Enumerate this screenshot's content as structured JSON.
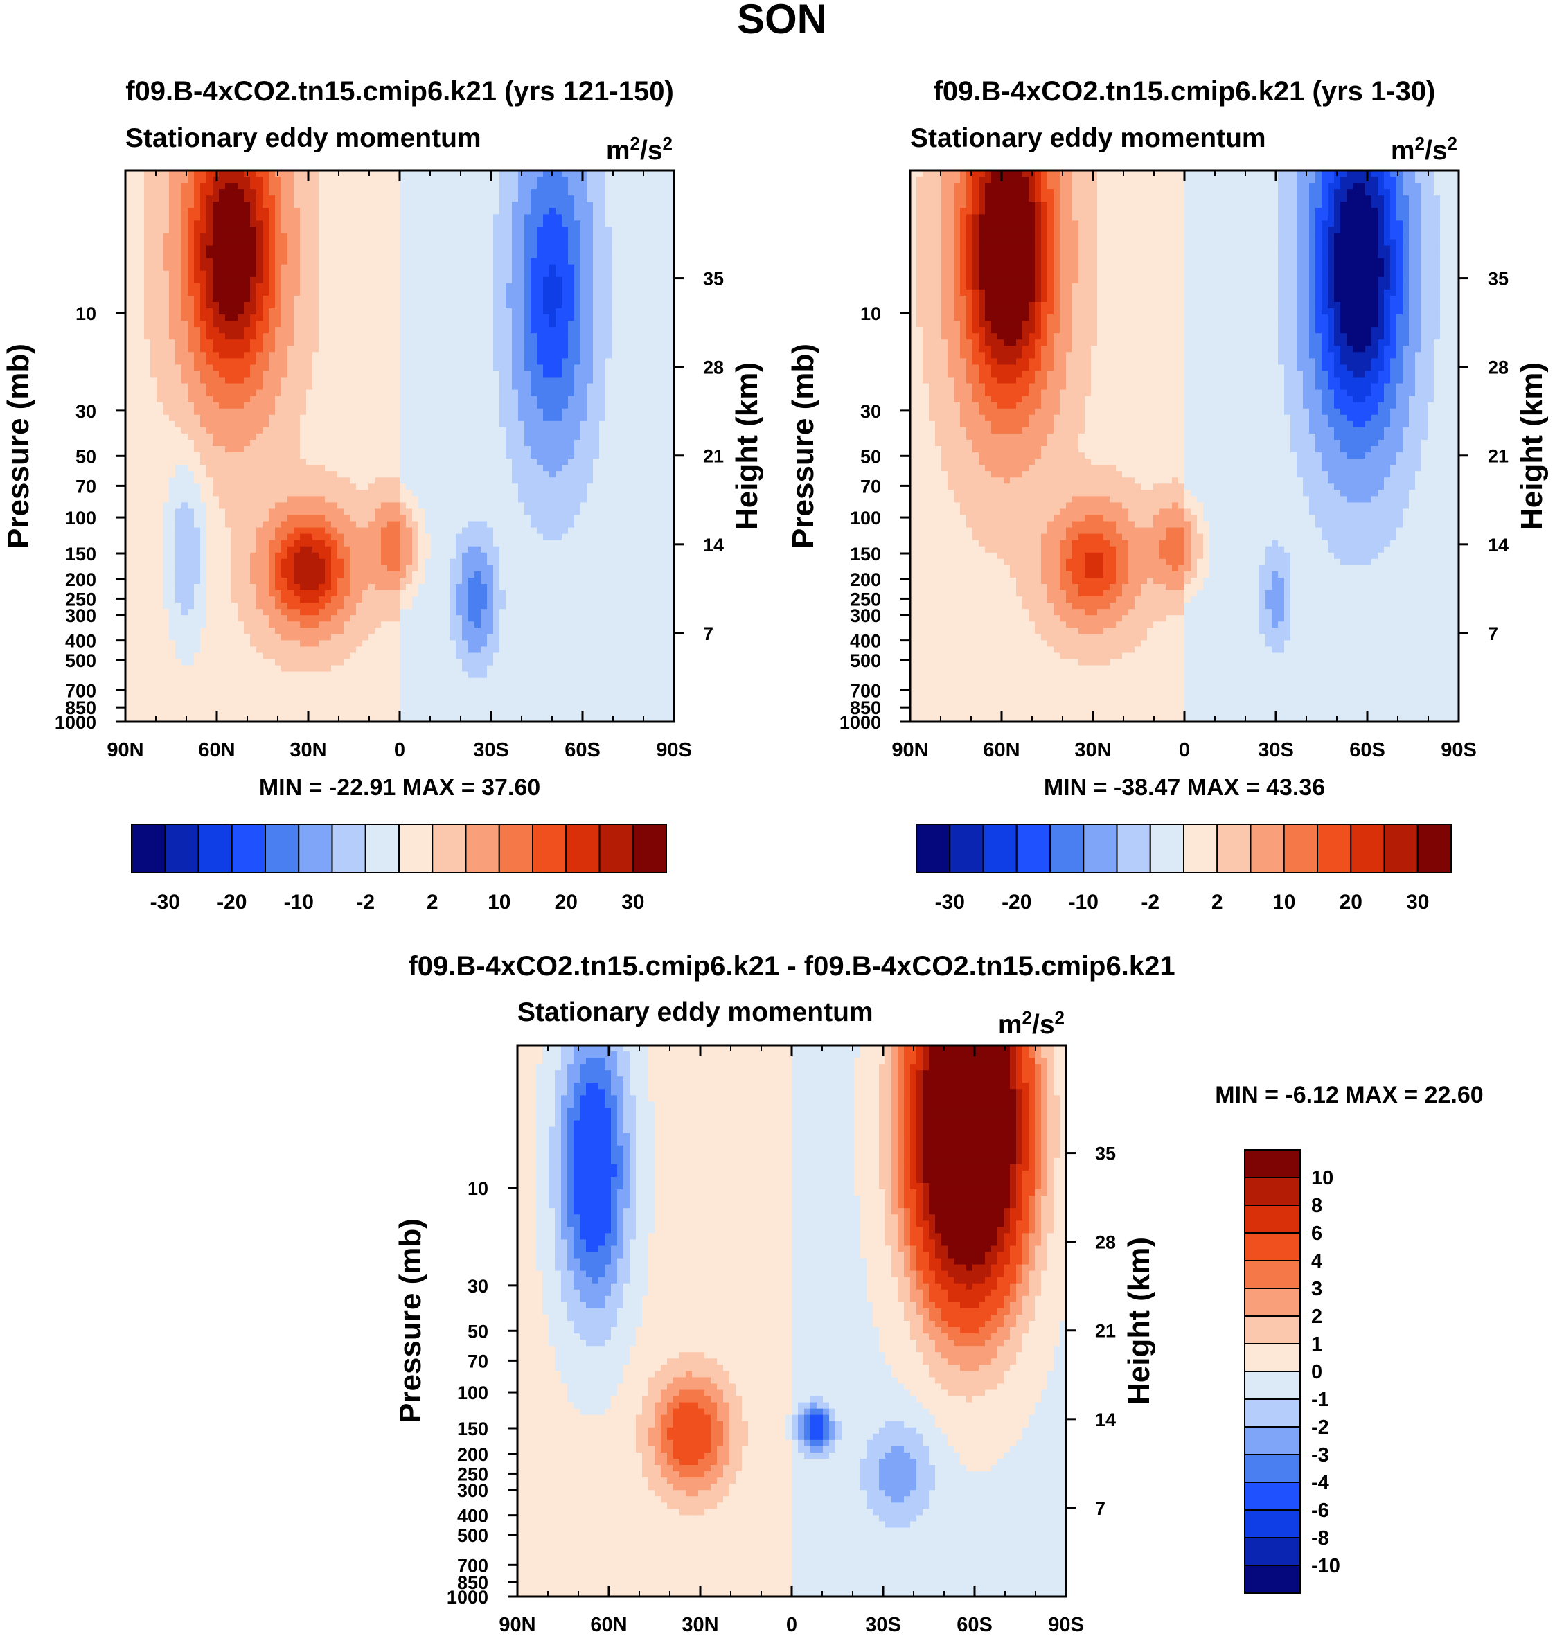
{
  "title": "SON",
  "chart_data": [
    {
      "type": "heatmap",
      "case_title": "f09.B-4xCO2.tn15.cmip6.k21 (yrs 121-150)",
      "variable": "Stationary eddy momentum",
      "units": "m2/s2",
      "units_base": "m",
      "units_sup1": "2",
      "units_mid": "/s",
      "units_sup2": "2",
      "xlabels": [
        "90N",
        "60N",
        "30N",
        "0",
        "30S",
        "60S",
        "90S"
      ],
      "ylabel": "Pressure (mb)",
      "yticks": [
        "10",
        "30",
        "50",
        "70",
        "100",
        "150",
        "200",
        "250",
        "300",
        "400",
        "500",
        "700",
        "850",
        "1000"
      ],
      "y2label": "Height (km)",
      "y2ticks": [
        "35",
        "28",
        "21",
        "14",
        "7"
      ],
      "stats": "MIN = -22.91  MAX =  37.60",
      "levels": [
        -30,
        -25,
        -20,
        -15,
        -10,
        -5,
        -2,
        0,
        2,
        5,
        10,
        15,
        20,
        25,
        30
      ],
      "colorbar_labels": [
        "-30",
        "-20",
        "-10",
        "-2",
        "2",
        "10",
        "20",
        "30"
      ],
      "features": [
        {
          "lat": 55,
          "p": 5,
          "value": 37.6,
          "slat": 10,
          "slogp": 0.45
        },
        {
          "lat": 30,
          "p": 180,
          "value": 28,
          "slat": 9,
          "slogp": 0.18
        },
        {
          "lat": 2,
          "p": 140,
          "value": 12,
          "slat": 5,
          "slogp": 0.14
        },
        {
          "lat": -50,
          "p": 8,
          "value": -20,
          "slat": 8,
          "slogp": 0.5
        },
        {
          "lat": -25,
          "p": 250,
          "value": -12,
          "slat": 4,
          "slogp": 0.18
        },
        {
          "lat": 70,
          "p": 150,
          "value": -5,
          "slat": 5,
          "slogp": 0.35
        }
      ]
    },
    {
      "type": "heatmap",
      "case_title": "f09.B-4xCO2.tn15.cmip6.k21 (yrs 1-30)",
      "variable": "Stationary eddy momentum",
      "units": "m2/s2",
      "units_base": "m",
      "units_sup1": "2",
      "units_mid": "/s",
      "units_sup2": "2",
      "xlabels": [
        "90N",
        "60N",
        "30N",
        "0",
        "30S",
        "60S",
        "90S"
      ],
      "ylabel": "Pressure (mb)",
      "yticks": [
        "10",
        "30",
        "50",
        "70",
        "100",
        "150",
        "200",
        "250",
        "300",
        "400",
        "500",
        "700",
        "850",
        "1000"
      ],
      "y2label": "Height (km)",
      "y2ticks": [
        "35",
        "28",
        "21",
        "14",
        "7"
      ],
      "stats": "MIN = -38.47  MAX =  43.36",
      "levels": [
        -30,
        -25,
        -20,
        -15,
        -10,
        -5,
        -2,
        0,
        2,
        5,
        10,
        15,
        20,
        25,
        30
      ],
      "colorbar_labels": [
        "-30",
        "-20",
        "-10",
        "-2",
        "2",
        "10",
        "20",
        "30"
      ],
      "features": [
        {
          "lat": 58,
          "p": 5,
          "value": 43.36,
          "slat": 10,
          "slogp": 0.5
        },
        {
          "lat": 30,
          "p": 170,
          "value": 20,
          "slat": 9,
          "slogp": 0.18
        },
        {
          "lat": 3,
          "p": 140,
          "value": 12,
          "slat": 5,
          "slogp": 0.13
        },
        {
          "lat": -57,
          "p": 6,
          "value": -38.47,
          "slat": 10,
          "slogp": 0.55
        },
        {
          "lat": -30,
          "p": 250,
          "value": -6,
          "slat": 3,
          "slogp": 0.15
        }
      ]
    },
    {
      "type": "heatmap",
      "case_title": "f09.B-4xCO2.tn15.cmip6.k21 - f09.B-4xCO2.tn15.cmip6.k21",
      "variable": "Stationary eddy momentum",
      "units": "m2/s2",
      "units_base": "m",
      "units_sup1": "2",
      "units_mid": "/s",
      "units_sup2": "2",
      "xlabels": [
        "90N",
        "60N",
        "30N",
        "0",
        "30S",
        "60S",
        "90S"
      ],
      "ylabel": "Pressure (mb)",
      "yticks": [
        "10",
        "30",
        "50",
        "70",
        "100",
        "150",
        "200",
        "250",
        "300",
        "400",
        "500",
        "700",
        "850",
        "1000"
      ],
      "y2label": "Height (km)",
      "y2ticks": [
        "35",
        "28",
        "21",
        "14",
        "7"
      ],
      "stats": "MIN =  -6.12  MAX =  22.60",
      "levels": [
        -10,
        -8,
        -6,
        -4,
        -3,
        -2,
        -1,
        0,
        1,
        2,
        3,
        4,
        6,
        8,
        10
      ],
      "colorbar_labels": [
        "10",
        "8",
        "6",
        "4",
        "3",
        "2",
        "1",
        "0",
        "-1",
        "-2",
        "-3",
        "-4",
        "-6",
        "-8",
        "-10"
      ],
      "features": [
        {
          "lat": 65,
          "p": 8,
          "value": -6.12,
          "slat": 8,
          "slogp": 0.5
        },
        {
          "lat": -58,
          "p": 5,
          "value": 22.6,
          "slat": 12,
          "slogp": 0.55
        },
        {
          "lat": 33,
          "p": 160,
          "value": 5,
          "slat": 9,
          "slogp": 0.2
        },
        {
          "lat": -8,
          "p": 150,
          "value": -5,
          "slat": 4,
          "slogp": 0.08
        },
        {
          "lat": -35,
          "p": 250,
          "value": -2.5,
          "slat": 8,
          "slogp": 0.18
        }
      ]
    }
  ],
  "colors": {
    "palette": [
      "#05087d",
      "#0a25b2",
      "#0f3ee6",
      "#1f51ff",
      "#4a7ff2",
      "#7ea5f7",
      "#b4cdfa",
      "#dceaf8",
      "#fde8d8",
      "#fbc8ae",
      "#f9a07a",
      "#f57848",
      "#f04f1e",
      "#d93009",
      "#b41c06",
      "#7e0303"
    ]
  }
}
